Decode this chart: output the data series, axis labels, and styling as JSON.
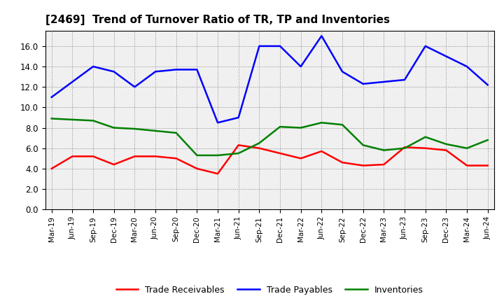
{
  "title": "[2469]  Trend of Turnover Ratio of TR, TP and Inventories",
  "labels": [
    "Mar-19",
    "Jun-19",
    "Sep-19",
    "Dec-19",
    "Mar-20",
    "Jun-20",
    "Sep-20",
    "Dec-20",
    "Mar-21",
    "Jun-21",
    "Sep-21",
    "Dec-21",
    "Mar-22",
    "Jun-22",
    "Sep-22",
    "Dec-22",
    "Mar-23",
    "Jun-23",
    "Sep-23",
    "Dec-23",
    "Mar-24",
    "Jun-24"
  ],
  "trade_receivables": [
    4.0,
    5.2,
    5.2,
    4.4,
    5.2,
    5.2,
    5.0,
    4.0,
    3.5,
    6.3,
    6.0,
    5.5,
    5.0,
    5.7,
    4.6,
    4.3,
    4.4,
    6.1,
    6.0,
    5.8,
    4.3,
    4.3
  ],
  "trade_payables": [
    11.0,
    12.5,
    14.0,
    13.5,
    12.0,
    13.5,
    13.7,
    13.7,
    8.5,
    9.0,
    16.0,
    16.0,
    14.0,
    17.0,
    13.5,
    12.3,
    12.5,
    12.7,
    16.0,
    15.0,
    14.0,
    12.2
  ],
  "inventories": [
    8.9,
    8.8,
    8.7,
    8.0,
    7.9,
    7.7,
    7.5,
    5.3,
    5.3,
    5.5,
    6.5,
    8.1,
    8.0,
    8.5,
    8.3,
    6.3,
    5.8,
    6.0,
    7.1,
    6.4,
    6.0,
    6.8
  ],
  "ylim": [
    0.0,
    17.5
  ],
  "yticks": [
    0.0,
    2.0,
    4.0,
    6.0,
    8.0,
    10.0,
    12.0,
    14.0,
    16.0
  ],
  "line_colors": {
    "trade_receivables": "#ff0000",
    "trade_payables": "#0000ff",
    "inventories": "#008000"
  },
  "legend_labels": [
    "Trade Receivables",
    "Trade Payables",
    "Inventories"
  ],
  "background_color": "#ffffff",
  "plot_bg_color": "#f0f0f0"
}
